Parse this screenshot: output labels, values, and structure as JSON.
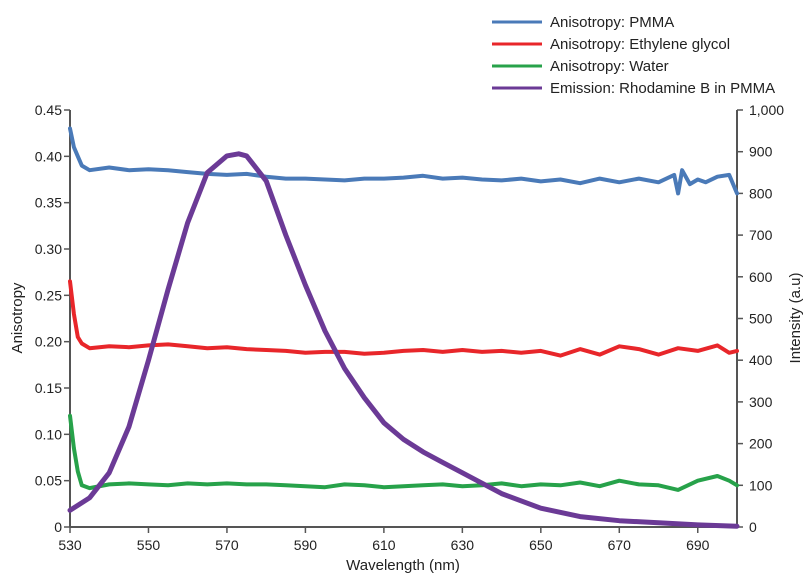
{
  "chart_data": {
    "type": "line",
    "xlabel": "Wavelength (nm)",
    "ylabel_left": "Anisotropy",
    "ylabel_right": "Intensity (a.u)",
    "xlim": [
      530,
      700
    ],
    "ylim_left": [
      0,
      0.45
    ],
    "ylim_right": [
      0,
      1000
    ],
    "x_ticks": [
      "530",
      "550",
      "570",
      "590",
      "610",
      "630",
      "650",
      "670",
      "690"
    ],
    "y_left_ticks": [
      "0",
      "0.05",
      "0.10",
      "0.15",
      "0.20",
      "0.25",
      "0.30",
      "0.35",
      "0.40",
      "0.45"
    ],
    "y_right_ticks": [
      "0",
      "100",
      "200",
      "300",
      "400",
      "500",
      "600",
      "700",
      "800",
      "900",
      "1,000"
    ],
    "legend_position": "top-right",
    "grid": false,
    "series": [
      {
        "name": "Anisotropy: PMMA",
        "axis": "left",
        "color": "#4a7ab8",
        "x": [
          530,
          531,
          532,
          533,
          535,
          540,
          545,
          550,
          555,
          560,
          565,
          570,
          575,
          580,
          585,
          590,
          595,
          600,
          605,
          610,
          615,
          620,
          625,
          630,
          635,
          640,
          645,
          650,
          655,
          660,
          665,
          670,
          675,
          680,
          684,
          685,
          686,
          688,
          690,
          692,
          695,
          698,
          700
        ],
        "y": [
          0.43,
          0.41,
          0.4,
          0.39,
          0.385,
          0.388,
          0.385,
          0.386,
          0.385,
          0.383,
          0.381,
          0.38,
          0.381,
          0.378,
          0.376,
          0.376,
          0.375,
          0.374,
          0.376,
          0.376,
          0.377,
          0.379,
          0.376,
          0.377,
          0.375,
          0.374,
          0.376,
          0.373,
          0.375,
          0.371,
          0.376,
          0.372,
          0.376,
          0.372,
          0.38,
          0.36,
          0.385,
          0.37,
          0.375,
          0.372,
          0.378,
          0.38,
          0.36
        ]
      },
      {
        "name": "Anisotropy: Ethylene glycol",
        "axis": "left",
        "color": "#e8262a",
        "x": [
          530,
          531,
          532,
          533,
          535,
          540,
          545,
          550,
          555,
          560,
          565,
          570,
          575,
          580,
          585,
          590,
          595,
          600,
          605,
          610,
          615,
          620,
          625,
          630,
          635,
          640,
          645,
          650,
          655,
          660,
          665,
          670,
          675,
          680,
          685,
          690,
          695,
          698,
          700
        ],
        "y": [
          0.265,
          0.23,
          0.205,
          0.198,
          0.193,
          0.195,
          0.194,
          0.196,
          0.197,
          0.195,
          0.193,
          0.194,
          0.192,
          0.191,
          0.19,
          0.188,
          0.189,
          0.189,
          0.187,
          0.188,
          0.19,
          0.191,
          0.189,
          0.191,
          0.189,
          0.19,
          0.188,
          0.19,
          0.185,
          0.192,
          0.186,
          0.195,
          0.192,
          0.186,
          0.193,
          0.19,
          0.196,
          0.188,
          0.19
        ]
      },
      {
        "name": "Anisotropy: Water",
        "axis": "left",
        "color": "#27a24a",
        "x": [
          530,
          531,
          532,
          533,
          535,
          540,
          545,
          550,
          555,
          560,
          565,
          570,
          575,
          580,
          585,
          590,
          595,
          600,
          605,
          610,
          615,
          620,
          625,
          630,
          635,
          640,
          645,
          650,
          655,
          660,
          665,
          670,
          675,
          680,
          685,
          690,
          695,
          698,
          700
        ],
        "y": [
          0.12,
          0.085,
          0.06,
          0.045,
          0.042,
          0.046,
          0.047,
          0.046,
          0.045,
          0.047,
          0.046,
          0.047,
          0.046,
          0.046,
          0.045,
          0.044,
          0.043,
          0.046,
          0.045,
          0.043,
          0.044,
          0.045,
          0.046,
          0.044,
          0.045,
          0.047,
          0.044,
          0.046,
          0.045,
          0.048,
          0.044,
          0.05,
          0.046,
          0.045,
          0.04,
          0.05,
          0.055,
          0.05,
          0.045
        ]
      },
      {
        "name": "Emission: Rhodamine B in PMMA",
        "axis": "right",
        "color": "#6b3a96",
        "x": [
          530,
          535,
          540,
          545,
          550,
          555,
          560,
          565,
          570,
          573,
          575,
          580,
          585,
          590,
          595,
          600,
          605,
          610,
          615,
          620,
          625,
          630,
          640,
          650,
          660,
          670,
          680,
          690,
          700
        ],
        "y": [
          40,
          70,
          130,
          240,
          400,
          570,
          730,
          850,
          890,
          895,
          890,
          830,
          700,
          580,
          470,
          380,
          310,
          250,
          210,
          180,
          155,
          130,
          80,
          45,
          25,
          15,
          10,
          5,
          2
        ]
      }
    ]
  }
}
